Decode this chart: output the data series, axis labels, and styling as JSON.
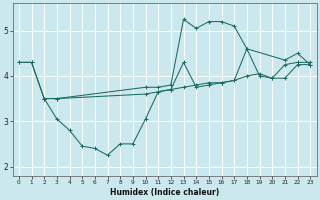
{
  "xlabel": "Humidex (Indice chaleur)",
  "bg_color": "#cce8ef",
  "line_color": "#1a6b5e",
  "grid_color": "#ffffff",
  "xlim": [
    -0.5,
    23.5
  ],
  "ylim": [
    1.8,
    5.6
  ],
  "yticks": [
    2,
    3,
    4,
    5
  ],
  "xticks": [
    0,
    1,
    2,
    3,
    4,
    5,
    6,
    7,
    8,
    9,
    10,
    11,
    12,
    13,
    14,
    15,
    16,
    17,
    18,
    19,
    20,
    21,
    22,
    23
  ],
  "series": [
    {
      "x": [
        0,
        1,
        2,
        3,
        4,
        5,
        6,
        7,
        8,
        9,
        10,
        11,
        12,
        13,
        14,
        15,
        16,
        17,
        18,
        19,
        20,
        21,
        22,
        23
      ],
      "y": [
        4.3,
        4.3,
        3.5,
        3.05,
        2.8,
        2.45,
        2.4,
        2.25,
        2.5,
        2.5,
        3.05,
        3.65,
        3.7,
        4.3,
        3.75,
        3.8,
        3.85,
        3.9,
        4.6,
        4.0,
        3.95,
        4.25,
        4.3,
        4.3
      ]
    },
    {
      "x": [
        0,
        1,
        2,
        3,
        10,
        11,
        12,
        13,
        14,
        15,
        16,
        17,
        18,
        21,
        22,
        23
      ],
      "y": [
        4.3,
        4.3,
        3.5,
        3.5,
        3.75,
        3.75,
        3.8,
        5.25,
        5.05,
        5.2,
        5.2,
        5.1,
        4.6,
        4.35,
        4.5,
        4.25
      ]
    },
    {
      "x": [
        2,
        3,
        10,
        11,
        12,
        13,
        14,
        15,
        16,
        17,
        18,
        19,
        20,
        21,
        22,
        23
      ],
      "y": [
        3.5,
        3.5,
        3.6,
        3.65,
        3.7,
        3.75,
        3.8,
        3.85,
        3.85,
        3.9,
        4.0,
        4.05,
        3.95,
        3.95,
        4.25,
        4.25
      ]
    }
  ]
}
